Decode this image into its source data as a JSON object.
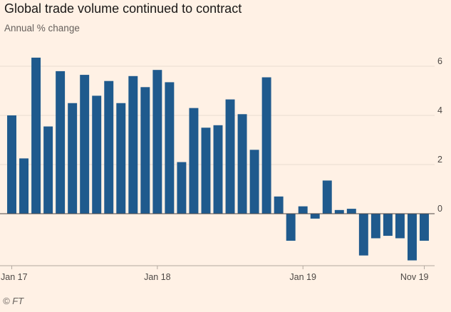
{
  "chart_data": {
    "type": "bar",
    "title": "Global trade volume continued to contract",
    "subtitle": "Annual % change",
    "source": "© FT",
    "ylabel": "",
    "xlabel": "",
    "ylim": [
      -2,
      6.6
    ],
    "yticks": [
      0,
      2,
      4,
      6
    ],
    "x_tick_labels": [
      {
        "label": "Jan 17",
        "index": 0
      },
      {
        "label": "Jan 18",
        "index": 12
      },
      {
        "label": "Jan 19",
        "index": 24
      },
      {
        "label": "Nov 19",
        "index": 34
      }
    ],
    "categories": [
      "Jan 17",
      "Feb 17",
      "Mar 17",
      "Apr 17",
      "May 17",
      "Jun 17",
      "Jul 17",
      "Aug 17",
      "Sep 17",
      "Oct 17",
      "Nov 17",
      "Dec 17",
      "Jan 18",
      "Feb 18",
      "Mar 18",
      "Apr 18",
      "May 18",
      "Jun 18",
      "Jul 18",
      "Aug 18",
      "Sep 18",
      "Oct 18",
      "Nov 18",
      "Dec 18",
      "Jan 19",
      "Feb 19",
      "Mar 19",
      "Apr 19",
      "May 19",
      "Jun 19",
      "Jul 19",
      "Aug 19",
      "Sep 19",
      "Oct 19",
      "Nov 19"
    ],
    "values": [
      4.0,
      2.25,
      6.35,
      3.55,
      5.8,
      4.5,
      5.65,
      4.8,
      5.4,
      4.5,
      5.6,
      5.15,
      5.85,
      5.35,
      2.1,
      4.3,
      3.5,
      3.6,
      4.65,
      4.05,
      2.6,
      5.55,
      0.7,
      -1.1,
      0.3,
      -0.2,
      1.35,
      0.15,
      0.2,
      -1.7,
      -1.0,
      -0.9,
      -1.0,
      -1.9,
      -1.1
    ],
    "colors": {
      "bar": "#1f5a8d",
      "background": "#fff1e5",
      "grid": "#e9ddd1",
      "zero": "#4d4845"
    }
  }
}
